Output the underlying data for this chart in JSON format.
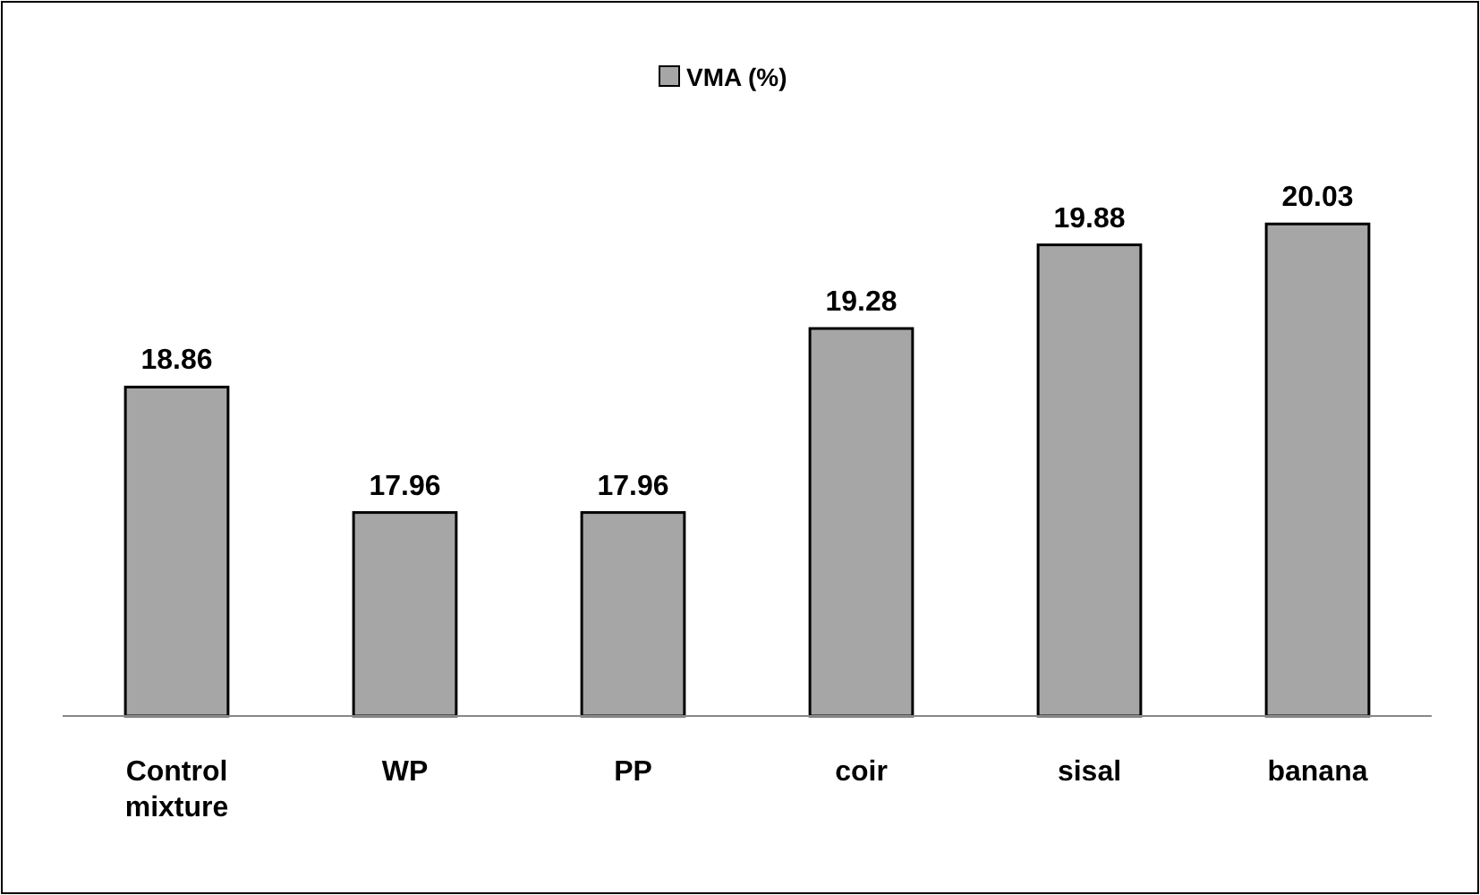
{
  "chart_data": {
    "type": "bar",
    "categories": [
      "Control mixture",
      "WP",
      "PP",
      "coir",
      "sisal",
      "banana"
    ],
    "series": [
      {
        "name": "VMA (%)",
        "color": "#a6a6a6",
        "values": [
          18.86,
          17.96,
          17.96,
          19.28,
          19.88,
          20.03
        ]
      }
    ],
    "ylim": [
      16.5,
      21.2
    ],
    "tick_labels": "x",
    "data_labels": true,
    "legend": "top",
    "grid": false
  }
}
